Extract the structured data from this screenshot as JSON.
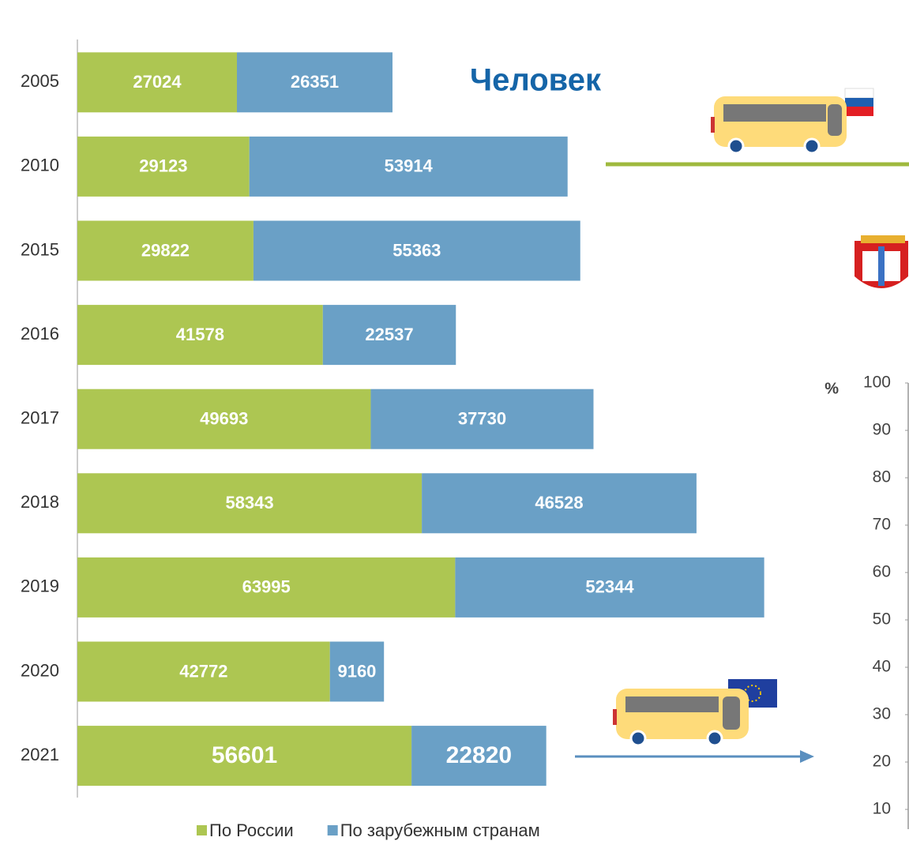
{
  "chart_data": {
    "type": "bar",
    "orientation": "horizontal",
    "stacked": true,
    "title": "Человек",
    "categories": [
      "2005",
      "2010",
      "2015",
      "2016",
      "2017",
      "2018",
      "2019",
      "2020",
      "2021"
    ],
    "series": [
      {
        "name": "По России",
        "color": "#adc652",
        "values": [
          27024,
          29123,
          29822,
          41578,
          49693,
          58343,
          63995,
          42772,
          56601
        ]
      },
      {
        "name": "По зарубежным странам",
        "color": "#6aa0c6",
        "values": [
          26351,
          53914,
          55363,
          22537,
          37730,
          46528,
          52344,
          9160,
          22820
        ]
      }
    ],
    "xlim": [
      0,
      140000
    ],
    "y2_label": "%",
    "y2lim": [
      10,
      100
    ],
    "y2ticks": [
      10,
      20,
      30,
      40,
      50,
      60,
      70,
      80,
      90,
      100
    ]
  }
}
